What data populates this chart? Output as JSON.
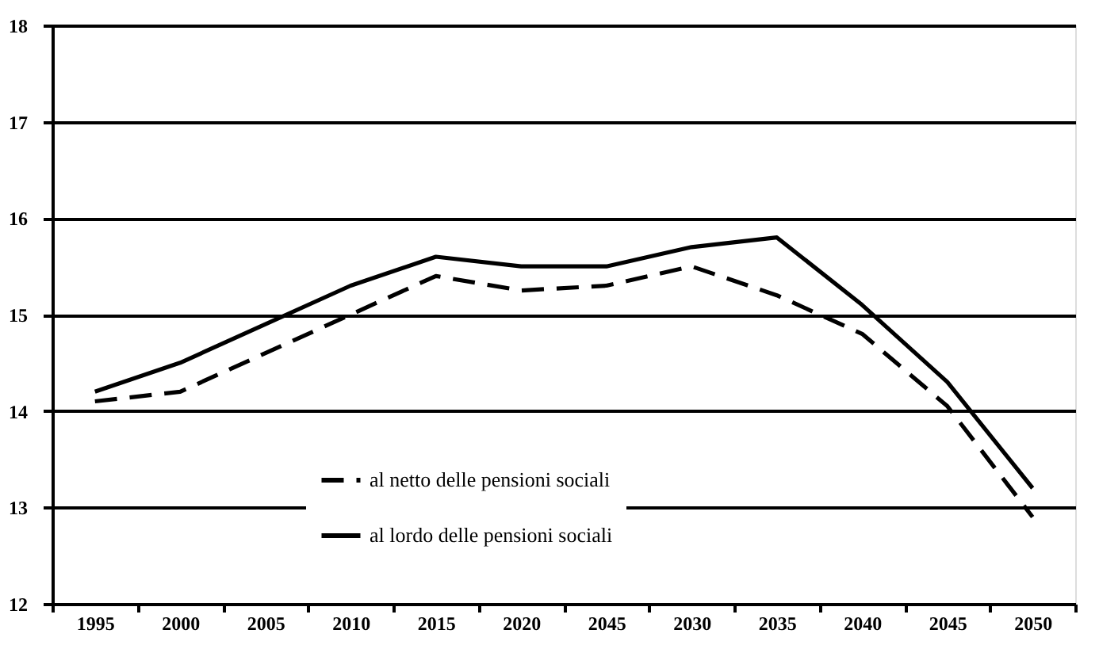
{
  "chart_data": {
    "type": "line",
    "categories": [
      "1995",
      "2000",
      "2005",
      "2010",
      "2015",
      "2020",
      "2045",
      "2030",
      "2035",
      "2040",
      "2045",
      "2050"
    ],
    "series": [
      {
        "name": "al netto delle pensioni sociali",
        "color": "#000000",
        "line_style": "dashed",
        "values": [
          14.1,
          14.2,
          14.6,
          15.0,
          15.4,
          15.25,
          15.3,
          15.5,
          15.2,
          14.8,
          14.05,
          12.9
        ]
      },
      {
        "name": "al lordo delle pensioni sociali",
        "color": "#000000",
        "line_style": "solid",
        "values": [
          14.2,
          14.5,
          14.9,
          15.3,
          15.6,
          15.5,
          15.5,
          15.7,
          15.8,
          15.1,
          14.3,
          13.2
        ]
      }
    ],
    "ylim": [
      12,
      18
    ],
    "yticks": [
      12,
      13,
      14,
      15,
      16,
      17,
      18
    ],
    "grid": "y",
    "legend": "bottom",
    "marker": "none"
  }
}
